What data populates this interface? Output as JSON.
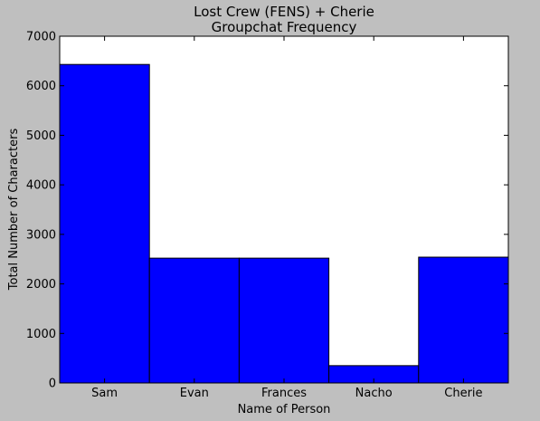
{
  "chart_data": {
    "type": "bar",
    "title_line1": "Lost Crew (FENS) + Cherie",
    "title_line2": "Groupchat Frequency",
    "xlabel": "Name of Person",
    "ylabel": "Total Number of Characters",
    "categories": [
      "Sam",
      "Evan",
      "Frances",
      "Nacho",
      "Cherie"
    ],
    "values": [
      6430,
      2520,
      2520,
      350,
      2540
    ],
    "ylim": [
      0,
      7000
    ],
    "yticks": [
      0,
      1000,
      2000,
      3000,
      4000,
      5000,
      6000,
      7000
    ],
    "bar_color": "#0000ff",
    "grid": false,
    "legend": "none"
  }
}
